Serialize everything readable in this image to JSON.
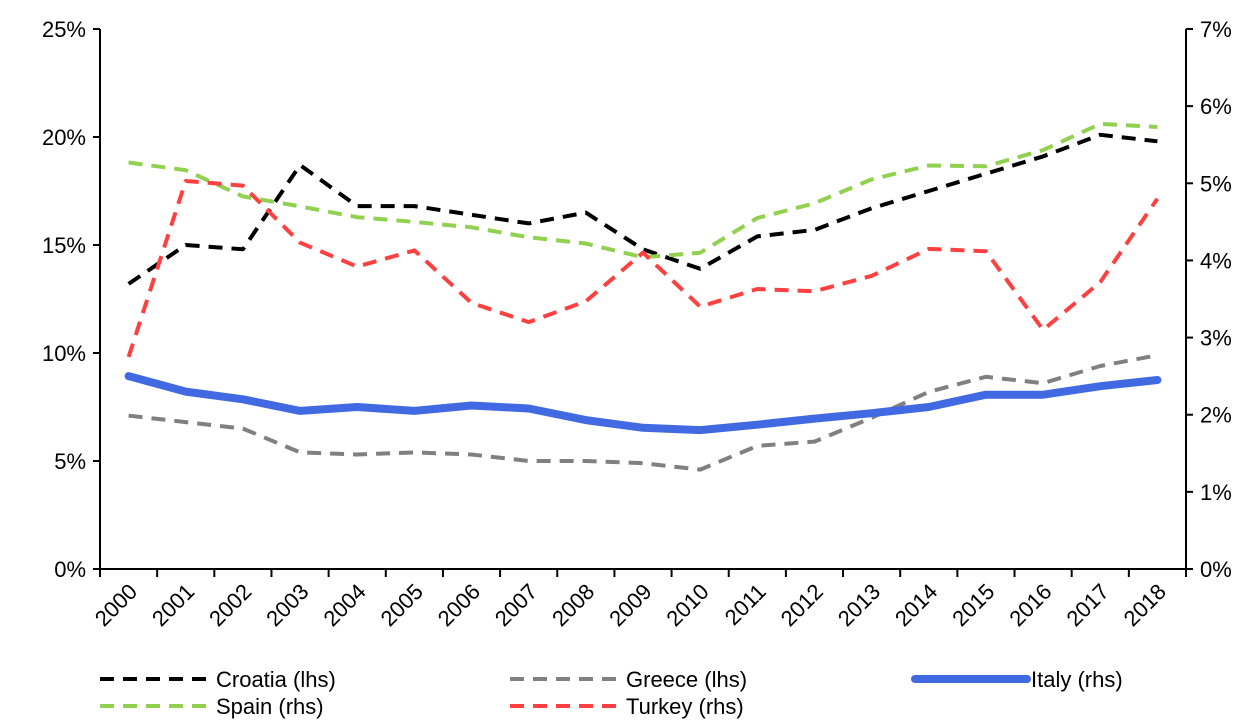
{
  "chart_data": {
    "type": "line",
    "title": "",
    "xlabel": "",
    "ylabel_left": "",
    "ylabel_right": "",
    "categories": [
      "2000",
      "2001",
      "2002",
      "2003",
      "2004",
      "2005",
      "2006",
      "2007",
      "2008",
      "2009",
      "2010",
      "2011",
      "2012",
      "2013",
      "2014",
      "2015",
      "2016",
      "2017",
      "2018"
    ],
    "y_left": {
      "ylim": [
        0,
        25
      ],
      "ticks": [
        0,
        5,
        10,
        15,
        20,
        25
      ],
      "tick_labels": [
        "0%",
        "5%",
        "10%",
        "15%",
        "20%",
        "25%"
      ]
    },
    "y_right": {
      "ylim": [
        0,
        7
      ],
      "ticks": [
        0,
        1,
        2,
        3,
        4,
        5,
        6,
        7
      ],
      "tick_labels": [
        "0%",
        "1%",
        "2%",
        "3%",
        "4%",
        "5%",
        "6%",
        "7%"
      ]
    },
    "grid": false,
    "legend_position": "bottom",
    "series": [
      {
        "name": "Croatia (lhs)",
        "axis": "left",
        "color": "#000000",
        "style": "dashed",
        "values": [
          13.2,
          15.0,
          14.8,
          18.7,
          16.8,
          16.8,
          16.4,
          16.0,
          16.5,
          14.8,
          13.9,
          15.4,
          15.7,
          16.7,
          17.5,
          18.3,
          19.1,
          20.1,
          19.8
        ]
      },
      {
        "name": "Greece (lhs)",
        "axis": "left",
        "color": "#808080",
        "style": "dashed",
        "values": [
          7.1,
          6.8,
          6.5,
          5.4,
          5.3,
          5.4,
          5.3,
          5.0,
          5.0,
          4.9,
          4.6,
          5.7,
          5.9,
          7.0,
          8.2,
          8.9,
          8.6,
          9.4,
          9.9
        ]
      },
      {
        "name": "Italy (rhs)",
        "axis": "right",
        "color": "#4169E1",
        "style": "solid",
        "values": [
          2.5,
          2.3,
          2.2,
          2.05,
          2.1,
          2.05,
          2.12,
          2.08,
          1.93,
          1.83,
          1.8,
          1.87,
          1.95,
          2.02,
          2.1,
          2.26,
          2.26,
          2.37,
          2.45
        ]
      },
      {
        "name": "Spain (rhs)",
        "axis": "right",
        "color": "#92D050",
        "style": "dashed",
        "values": [
          5.27,
          5.17,
          4.83,
          4.7,
          4.56,
          4.5,
          4.43,
          4.3,
          4.22,
          4.04,
          4.1,
          4.55,
          4.74,
          5.05,
          5.23,
          5.22,
          5.43,
          5.77,
          5.73
        ]
      },
      {
        "name": "Turkey (rhs)",
        "axis": "right",
        "color": "#FF4040",
        "style": "dashed",
        "values": [
          2.75,
          5.03,
          4.97,
          4.23,
          3.92,
          4.13,
          3.45,
          3.2,
          3.47,
          4.1,
          3.4,
          3.63,
          3.6,
          3.8,
          4.15,
          4.12,
          3.1,
          3.72,
          4.8
        ]
      }
    ]
  }
}
